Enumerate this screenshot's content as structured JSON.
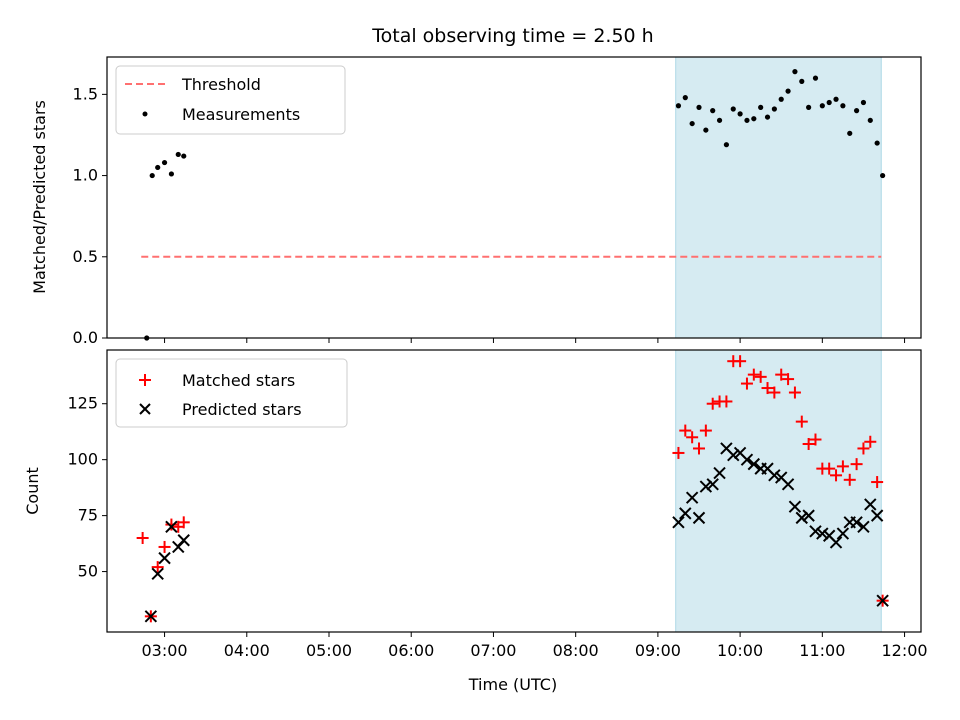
{
  "title": "Total observing time = 2.50 h",
  "xlabel": "Time (UTC)",
  "x_ticks": [
    "03:00",
    "04:00",
    "05:00",
    "06:00",
    "07:00",
    "08:00",
    "09:00",
    "10:00",
    "11:00",
    "12:00"
  ],
  "colors": {
    "threshold": "#ff7070",
    "measurement": "#000000",
    "matched": "#ff0000",
    "predicted": "#000000",
    "span": "#add8e6"
  },
  "chart_data": [
    {
      "type": "scatter",
      "ylabel": "Matched/Predicted stars",
      "xlim": [
        "02:18",
        "12:12"
      ],
      "ylim": [
        0,
        1.73
      ],
      "y_ticks": [
        0.0,
        0.5,
        1.0,
        1.5
      ],
      "y_tick_labels": [
        "0.0",
        "0.5",
        "1.0",
        "1.5"
      ],
      "shaded_span": [
        "09:13",
        "11:43"
      ],
      "legend": {
        "placement": "upper-left",
        "threshold_label": "Threshold",
        "measurements_label": "Measurements"
      },
      "threshold": {
        "value": 0.5,
        "x_range": [
          "02:43",
          "11:43"
        ]
      },
      "series": [
        {
          "name": "Measurements",
          "points": [
            [
              "02:47",
              0.0
            ],
            [
              "02:51",
              1.0
            ],
            [
              "02:55",
              1.05
            ],
            [
              "03:00",
              1.08
            ],
            [
              "03:05",
              1.01
            ],
            [
              "03:10",
              1.13
            ],
            [
              "03:14",
              1.12
            ],
            [
              "09:15",
              1.43
            ],
            [
              "09:20",
              1.48
            ],
            [
              "09:25",
              1.32
            ],
            [
              "09:30",
              1.42
            ],
            [
              "09:35",
              1.28
            ],
            [
              "09:40",
              1.4
            ],
            [
              "09:45",
              1.34
            ],
            [
              "09:50",
              1.19
            ],
            [
              "09:55",
              1.41
            ],
            [
              "10:00",
              1.38
            ],
            [
              "10:05",
              1.34
            ],
            [
              "10:10",
              1.35
            ],
            [
              "10:15",
              1.42
            ],
            [
              "10:20",
              1.36
            ],
            [
              "10:25",
              1.41
            ],
            [
              "10:30",
              1.47
            ],
            [
              "10:35",
              1.52
            ],
            [
              "10:40",
              1.64
            ],
            [
              "10:45",
              1.58
            ],
            [
              "10:50",
              1.42
            ],
            [
              "10:55",
              1.6
            ],
            [
              "11:00",
              1.43
            ],
            [
              "11:05",
              1.45
            ],
            [
              "11:10",
              1.47
            ],
            [
              "11:15",
              1.43
            ],
            [
              "11:20",
              1.26
            ],
            [
              "11:25",
              1.4
            ],
            [
              "11:30",
              1.45
            ],
            [
              "11:35",
              1.34
            ],
            [
              "11:40",
              1.2
            ],
            [
              "11:44",
              1.0
            ]
          ]
        }
      ]
    },
    {
      "type": "scatter",
      "ylabel": "Count",
      "xlim": [
        "02:18",
        "12:12"
      ],
      "ylim": [
        23,
        149
      ],
      "y_ticks": [
        50,
        75,
        100,
        125
      ],
      "y_tick_labels": [
        "50",
        "75",
        "100",
        "125"
      ],
      "shaded_span": [
        "09:13",
        "11:43"
      ],
      "legend": {
        "placement": "upper-left",
        "matched_label": "Matched stars",
        "predicted_label": "Predicted stars"
      },
      "series": [
        {
          "name": "Matched stars",
          "marker": "plus",
          "points": [
            [
              "02:44",
              65
            ],
            [
              "02:50",
              30
            ],
            [
              "02:55",
              52
            ],
            [
              "03:00",
              61
            ],
            [
              "03:05",
              71
            ],
            [
              "03:10",
              70
            ],
            [
              "03:14",
              72
            ],
            [
              "09:15",
              103
            ],
            [
              "09:20",
              113
            ],
            [
              "09:25",
              110
            ],
            [
              "09:30",
              105
            ],
            [
              "09:35",
              113
            ],
            [
              "09:40",
              125
            ],
            [
              "09:45",
              126
            ],
            [
              "09:50",
              126
            ],
            [
              "09:55",
              144
            ],
            [
              "10:00",
              144
            ],
            [
              "10:05",
              134
            ],
            [
              "10:10",
              138
            ],
            [
              "10:15",
              137
            ],
            [
              "10:20",
              132
            ],
            [
              "10:25",
              130
            ],
            [
              "10:30",
              138
            ],
            [
              "10:35",
              136
            ],
            [
              "10:40",
              130
            ],
            [
              "10:45",
              117
            ],
            [
              "10:50",
              107
            ],
            [
              "10:55",
              109
            ],
            [
              "11:00",
              96
            ],
            [
              "11:05",
              96
            ],
            [
              "11:10",
              93
            ],
            [
              "11:15",
              97
            ],
            [
              "11:20",
              91
            ],
            [
              "11:25",
              98
            ],
            [
              "11:30",
              105
            ],
            [
              "11:35",
              108
            ],
            [
              "11:40",
              90
            ],
            [
              "11:44",
              37
            ]
          ]
        },
        {
          "name": "Predicted stars",
          "marker": "x",
          "points": [
            [
              "02:50",
              30
            ],
            [
              "02:55",
              49
            ],
            [
              "03:00",
              56
            ],
            [
              "03:05",
              70
            ],
            [
              "03:10",
              61
            ],
            [
              "03:14",
              64
            ],
            [
              "09:15",
              72
            ],
            [
              "09:20",
              76
            ],
            [
              "09:25",
              83
            ],
            [
              "09:30",
              74
            ],
            [
              "09:35",
              88
            ],
            [
              "09:40",
              89
            ],
            [
              "09:45",
              94
            ],
            [
              "09:50",
              105
            ],
            [
              "09:55",
              102
            ],
            [
              "10:00",
              103
            ],
            [
              "10:05",
              100
            ],
            [
              "10:10",
              98
            ],
            [
              "10:15",
              96
            ],
            [
              "10:20",
              96
            ],
            [
              "10:25",
              93
            ],
            [
              "10:30",
              92
            ],
            [
              "10:35",
              89
            ],
            [
              "10:40",
              79
            ],
            [
              "10:45",
              74
            ],
            [
              "10:50",
              75
            ],
            [
              "10:55",
              68
            ],
            [
              "11:00",
              67
            ],
            [
              "11:05",
              66
            ],
            [
              "11:10",
              63
            ],
            [
              "11:15",
              67
            ],
            [
              "11:20",
              72
            ],
            [
              "11:25",
              72
            ],
            [
              "11:30",
              70
            ],
            [
              "11:35",
              80
            ],
            [
              "11:40",
              75
            ],
            [
              "11:44",
              37
            ]
          ]
        }
      ]
    }
  ]
}
